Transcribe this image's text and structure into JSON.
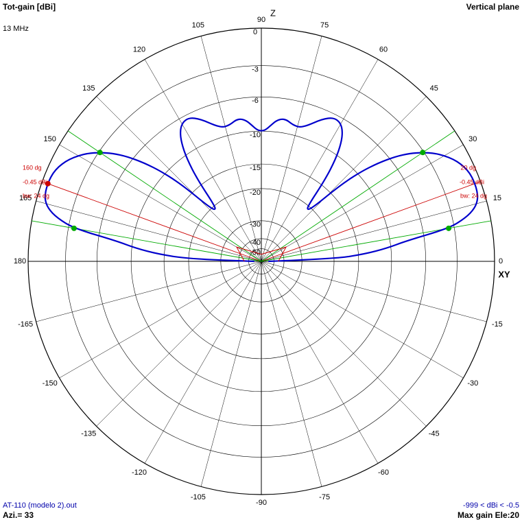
{
  "header": {
    "title": "Tot-gain [dBi]",
    "frequency": "13 MHz",
    "plane": "Vertical plane"
  },
  "footer": {
    "file": "AT-110 (modelo 2).out",
    "azimuth": "Azi.= 33",
    "range": "-999 < dBi < -0.5",
    "max_gain": "Max gain Ele:20"
  },
  "colors": {
    "pattern": "#0000cc",
    "grid": "#000000",
    "beam_line": "#cc0000",
    "halfpower_line": "#00aa00",
    "text": "#000000",
    "info_text": "#0000aa"
  },
  "chart_data": {
    "type": "polar",
    "title": "Tot-gain [dBi]",
    "plane": "Vertical plane",
    "frequency": "13 MHz",
    "axis_labels": {
      "top": "Z",
      "right": "XY"
    },
    "angle_labels": [
      "0",
      "15",
      "30",
      "45",
      "60",
      "75",
      "90",
      "105",
      "120",
      "135",
      "150",
      "165",
      "180",
      "-165",
      "-150",
      "-135",
      "-120",
      "-105",
      "-90",
      "-75",
      "-60",
      "-45",
      "-30",
      "-15"
    ],
    "radial_labels": [
      "0",
      "-3",
      "-6",
      "-10",
      "-15",
      "-20",
      "-30",
      "-40",
      "-50"
    ],
    "radial_db": [
      0,
      -3,
      -6,
      -10,
      -15,
      -20,
      -30,
      -40,
      -50
    ],
    "series": [
      {
        "elevation_deg": [
          0,
          2,
          4,
          6,
          8,
          10,
          12,
          14,
          16,
          18,
          20,
          22,
          24,
          26,
          28,
          30,
          32,
          34,
          36,
          38,
          40,
          42,
          44,
          46,
          48,
          50,
          52,
          54,
          56,
          58,
          60,
          62,
          64,
          66,
          68,
          70,
          72,
          74,
          76,
          78,
          80,
          82,
          84,
          86,
          88,
          90
        ],
        "gain_dbi": [
          -60,
          -20,
          -14,
          -10.5,
          -8,
          -3.5,
          -1.9,
          -1,
          -0.6,
          -0.47,
          -0.45,
          -0.48,
          -0.6,
          -0.85,
          -1.2,
          -1.7,
          -2.3,
          -3.1,
          -4.1,
          -5.4,
          -7.2,
          -9.5,
          -13,
          -19,
          -21,
          -20,
          -14,
          -10.5,
          -8.4,
          -7.2,
          -6.6,
          -6.4,
          -6.5,
          -6.9,
          -7.4,
          -8.0,
          -8.5,
          -8.8,
          -8.8,
          -8.6,
          -8.3,
          -8.3,
          -8.6,
          -9.2,
          -9.8,
          -10
        ]
      }
    ],
    "beams": [
      {
        "label": "20 dg",
        "gain_label": "-0.45 dBi",
        "bw_label": "bw: 24 dg",
        "angle": 20,
        "gain": -0.45,
        "halfpower_angles": [
          10,
          34
        ]
      },
      {
        "label": "160 dg",
        "gain_label": "-0.45 dBi",
        "bw_label": "bw: 24 dg",
        "angle": 160,
        "gain": -0.45,
        "halfpower_angles": [
          146,
          170
        ]
      }
    ]
  }
}
